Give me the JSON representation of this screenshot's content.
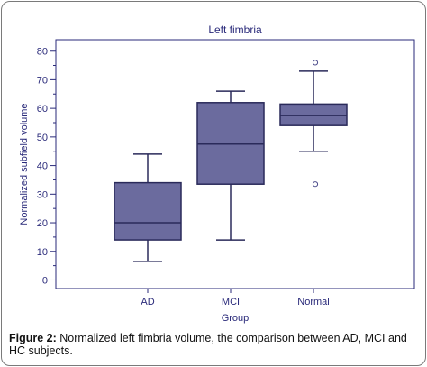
{
  "chart_data": {
    "type": "box",
    "title": "Left fimbria",
    "xlabel": "Group",
    "ylabel": "Normalized subfield volume",
    "ylim": [
      -3,
      84
    ],
    "yticks": [
      0,
      10,
      20,
      30,
      40,
      50,
      60,
      70,
      80
    ],
    "categories": [
      "AD",
      "MCI",
      "Normal"
    ],
    "boxes": [
      {
        "category": "AD",
        "whisker_low": 6.5,
        "q1": 14,
        "median": 20,
        "q3": 34,
        "whisker_high": 44,
        "outliers": []
      },
      {
        "category": "MCI",
        "whisker_low": 14,
        "q1": 33.5,
        "median": 47.5,
        "q3": 62,
        "whisker_high": 66,
        "outliers": []
      },
      {
        "category": "Normal",
        "whisker_low": 45,
        "q1": 54,
        "median": 57.5,
        "q3": 61.5,
        "whisker_high": 73,
        "outliers": [
          76,
          33.5
        ]
      }
    ],
    "box_color": "#6b6b9e",
    "line_color": "#2a2a5a",
    "axis_color": "#2a2a7a"
  },
  "caption": {
    "label": "Figure 2:",
    "text": " Normalized left fimbria volume, the comparison between AD, MCI and HC subjects."
  }
}
